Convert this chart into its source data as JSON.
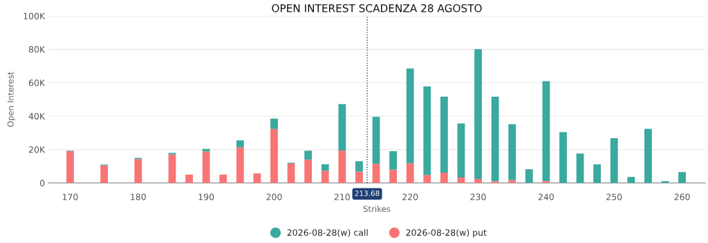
{
  "chart_data": {
    "type": "bar",
    "title": "OPEN INTEREST SCADENZA 28 AGOSTO",
    "xlabel": "Strikes",
    "ylabel": "Open Interest",
    "stacked": true,
    "x": [
      170,
      175,
      180,
      185,
      187.5,
      190,
      192.5,
      195,
      197.5,
      200,
      202.5,
      205,
      207.5,
      210,
      212.5,
      215,
      217.5,
      220,
      222.5,
      225,
      227.5,
      230,
      232.5,
      235,
      237.5,
      240,
      242.5,
      245,
      247.5,
      250,
      252.5,
      255,
      257.5,
      260
    ],
    "series": [
      {
        "name": "2026-08-28(w) put",
        "color": "#f87575",
        "values": [
          19,
          10.5,
          14.3,
          17.1,
          5,
          18.9,
          5,
          21.4,
          5.7,
          32.3,
          11.6,
          13.9,
          7.3,
          19.4,
          6.8,
          11.5,
          8,
          11.8,
          4.8,
          6.2,
          3.3,
          2.5,
          1,
          1.8,
          0,
          1.1,
          0,
          0,
          0,
          0,
          0,
          0,
          0,
          0
        ]
      },
      {
        "name": "2026-08-28(w) call",
        "color": "#3aa99f",
        "values": [
          0.3,
          0.5,
          0.7,
          0.9,
          0,
          1.5,
          0,
          4.1,
          0,
          6.2,
          0.5,
          5.4,
          3.9,
          27.8,
          6.2,
          28.1,
          11,
          56.7,
          52.9,
          45.5,
          32.3,
          77.6,
          50.7,
          33.4,
          8.2,
          59.8,
          30.4,
          17.6,
          11.1,
          26.8,
          3.6,
          32.4,
          1.1,
          6.5
        ]
      }
    ],
    "xlim": [
      166.8,
      263.4
    ],
    "xticks": [
      170,
      180,
      190,
      200,
      210,
      220,
      230,
      240,
      250,
      260
    ],
    "ylim": [
      0,
      100
    ],
    "yticks": [
      0,
      {
        "value": 20,
        "label": "20K"
      },
      {
        "value": 40,
        "label": "40K"
      },
      {
        "value": 60,
        "label": "60K"
      },
      {
        "value": 80,
        "label": "80K"
      },
      {
        "value": 100,
        "label": "100K"
      }
    ],
    "ref_lines": [
      {
        "axis": "x",
        "value": 213.68,
        "label": "213.68",
        "color": "#1f3f73",
        "line_style": "dotted"
      }
    ],
    "grid": "y",
    "legend": "bottom",
    "marker": "circle"
  }
}
